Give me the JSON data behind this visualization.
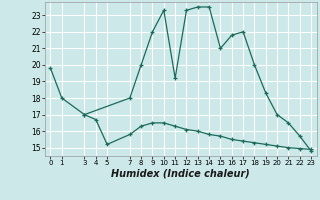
{
  "xlabel": "Humidex (Indice chaleur)",
  "background_color": "#cce8e8",
  "grid_color": "#ffffff",
  "line_color": "#1a6b5a",
  "ylim": [
    14.5,
    23.8
  ],
  "xlim": [
    -0.5,
    23.5
  ],
  "yticks": [
    15,
    16,
    17,
    18,
    19,
    20,
    21,
    22,
    23
  ],
  "xticks": [
    0,
    1,
    3,
    4,
    5,
    7,
    8,
    9,
    10,
    11,
    12,
    13,
    14,
    15,
    16,
    17,
    18,
    19,
    20,
    21,
    22,
    23
  ],
  "line1_x": [
    0,
    1,
    3,
    7,
    8,
    9,
    10,
    11,
    12,
    13,
    14,
    15,
    16,
    17,
    18,
    19,
    20,
    21,
    22,
    23
  ],
  "line1_y": [
    19.8,
    18.0,
    17.0,
    18.0,
    20.0,
    22.0,
    23.3,
    19.2,
    23.3,
    23.5,
    23.5,
    21.0,
    21.8,
    22.0,
    20.0,
    18.3,
    17.0,
    16.5,
    15.7,
    14.8
  ],
  "line2_x": [
    3,
    4,
    5,
    7,
    8,
    9,
    10,
    11,
    12,
    13,
    14,
    15,
    16,
    17,
    18,
    19,
    20,
    21,
    22,
    23
  ],
  "line2_y": [
    17.0,
    16.7,
    15.2,
    15.8,
    16.3,
    16.5,
    16.5,
    16.3,
    16.1,
    16.0,
    15.8,
    15.7,
    15.5,
    15.4,
    15.3,
    15.2,
    15.1,
    15.0,
    14.95,
    14.9
  ]
}
